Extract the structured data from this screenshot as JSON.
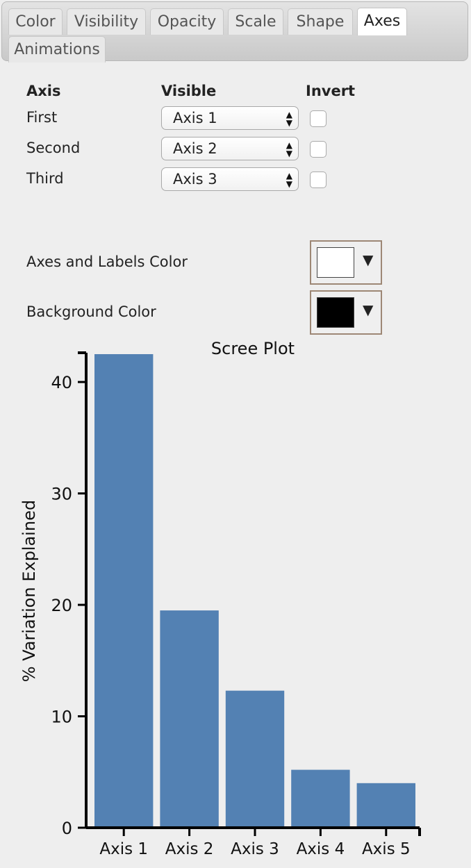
{
  "tabs": [
    {
      "label": "Color",
      "active": false
    },
    {
      "label": "Visibility",
      "active": false
    },
    {
      "label": "Opacity",
      "active": false
    },
    {
      "label": "Scale",
      "active": false
    },
    {
      "label": "Shape",
      "active": false
    },
    {
      "label": "Axes",
      "active": true
    },
    {
      "label": "Animations",
      "active": false
    }
  ],
  "axes_table": {
    "headers": {
      "axis": "Axis",
      "visible": "Visible",
      "invert": "Invert"
    },
    "rows": [
      {
        "label": "First",
        "selected": "Axis 1",
        "inverted": false
      },
      {
        "label": "Second",
        "selected": "Axis 2",
        "inverted": false
      },
      {
        "label": "Third",
        "selected": "Axis 3",
        "inverted": false
      }
    ]
  },
  "colors": {
    "axes_label": "Axes and Labels Color",
    "axes_value": "#ffffff",
    "background_label": "Background Color",
    "background_value": "#000000",
    "bar_color": "#5381b3"
  },
  "chart_data": {
    "type": "bar",
    "title": "Scree Plot",
    "xlabel": "",
    "ylabel": "% Variation Explained",
    "categories": [
      "Axis 1",
      "Axis 2",
      "Axis 3",
      "Axis 4",
      "Axis 5"
    ],
    "values": [
      42.5,
      19.5,
      12.3,
      5.2,
      4.0
    ],
    "ylim": [
      0,
      42.5
    ],
    "yticks": [
      0,
      10,
      20,
      30,
      40
    ],
    "grid": false,
    "legend": "none"
  }
}
